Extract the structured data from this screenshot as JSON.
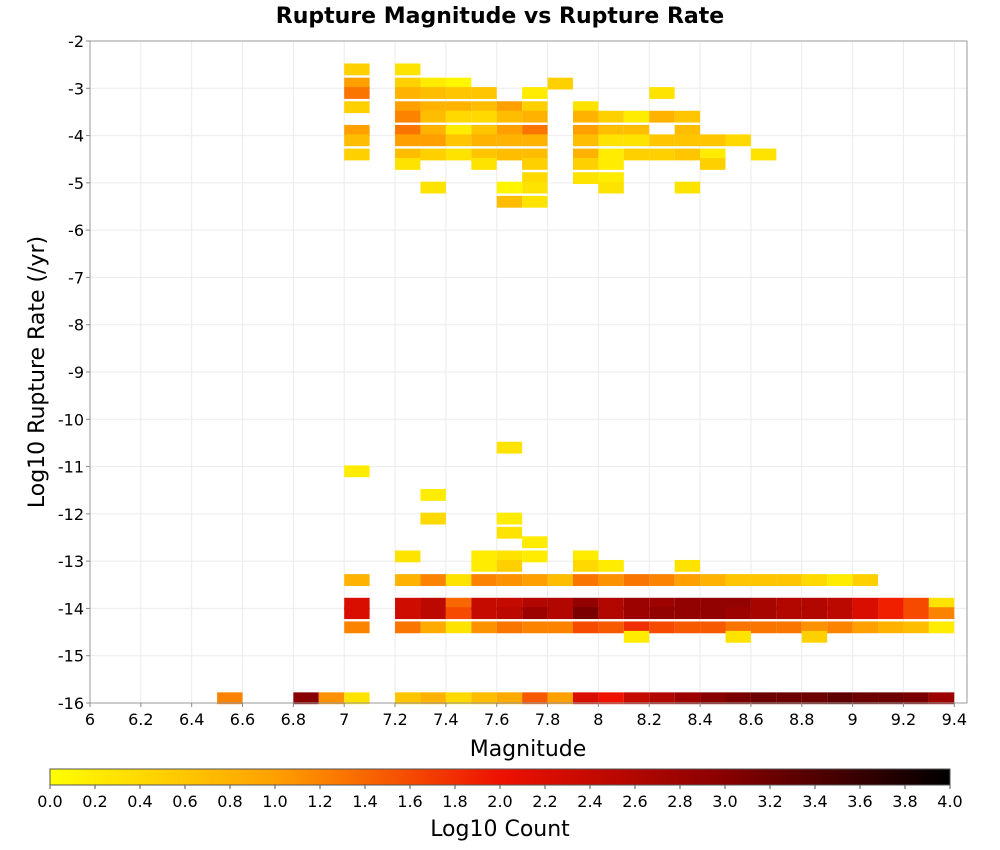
{
  "chart_data": {
    "type": "heatmap",
    "title": "Rupture Magnitude vs Rupture Rate",
    "xlabel": "Magnitude",
    "ylabel": "Log10 Rupture Rate (/yr)",
    "xlim": [
      6.0,
      9.45
    ],
    "ylim": [
      -16,
      -2
    ],
    "xticks": [
      "6",
      "6.2",
      "6.4",
      "6.6",
      "6.8",
      "7",
      "7.2",
      "7.4",
      "7.6",
      "7.8",
      "8",
      "8.2",
      "8.4",
      "8.6",
      "8.8",
      "9",
      "9.2",
      "9.4"
    ],
    "yticks": [
      "-2",
      "-3",
      "-4",
      "-5",
      "-6",
      "-7",
      "-8",
      "-9",
      "-10",
      "-11",
      "-12",
      "-13",
      "-14",
      "-15",
      "-16"
    ],
    "bin_width_x": 0.1,
    "bin_height_y": 0.25,
    "grid": true,
    "colorbar": {
      "label": "Log10 Count",
      "min": 0.0,
      "max": 4.0,
      "ticks": [
        "0.0",
        "0.2",
        "0.4",
        "0.6",
        "0.8",
        "1.0",
        "1.2",
        "1.4",
        "1.6",
        "1.8",
        "2.0",
        "2.2",
        "2.4",
        "2.6",
        "2.8",
        "3.0",
        "3.2",
        "3.4",
        "3.6",
        "3.8",
        "4.0"
      ],
      "colors": [
        "#ffff00",
        "#ffa000",
        "#ee1100",
        "#880000",
        "#000000"
      ]
    },
    "cells": [
      [
        7.05,
        -2.6,
        0.5
      ],
      [
        7.05,
        -2.9,
        1.0
      ],
      [
        7.05,
        -3.1,
        1.3
      ],
      [
        7.05,
        -3.4,
        0.5
      ],
      [
        7.05,
        -3.9,
        1.0
      ],
      [
        7.05,
        -4.1,
        0.7
      ],
      [
        7.05,
        -4.4,
        0.5
      ],
      [
        7.25,
        -2.6,
        0.3
      ],
      [
        7.25,
        -2.9,
        0.5
      ],
      [
        7.25,
        -3.1,
        0.8
      ],
      [
        7.25,
        -3.4,
        1.0
      ],
      [
        7.25,
        -3.6,
        1.2
      ],
      [
        7.25,
        -3.9,
        1.3
      ],
      [
        7.25,
        -4.1,
        1.0
      ],
      [
        7.25,
        -4.4,
        0.7
      ],
      [
        7.25,
        -4.6,
        0.3
      ],
      [
        7.35,
        -2.9,
        0.2
      ],
      [
        7.35,
        -3.1,
        0.7
      ],
      [
        7.35,
        -3.4,
        0.8
      ],
      [
        7.35,
        -3.6,
        0.7
      ],
      [
        7.35,
        -3.9,
        0.8
      ],
      [
        7.35,
        -4.1,
        1.0
      ],
      [
        7.35,
        -4.4,
        0.5
      ],
      [
        7.35,
        -5.1,
        0.3
      ],
      [
        7.45,
        -2.9,
        0.1
      ],
      [
        7.45,
        -3.1,
        0.6
      ],
      [
        7.45,
        -3.4,
        0.8
      ],
      [
        7.45,
        -3.6,
        0.4
      ],
      [
        7.45,
        -3.9,
        0.2
      ],
      [
        7.45,
        -4.1,
        0.6
      ],
      [
        7.45,
        -4.4,
        0.3
      ],
      [
        7.55,
        -3.1,
        0.6
      ],
      [
        7.55,
        -3.4,
        0.7
      ],
      [
        7.55,
        -3.6,
        0.4
      ],
      [
        7.55,
        -3.9,
        0.6
      ],
      [
        7.55,
        -4.1,
        0.8
      ],
      [
        7.55,
        -4.4,
        0.6
      ],
      [
        7.55,
        -4.6,
        0.3
      ],
      [
        7.65,
        -3.4,
        1.0
      ],
      [
        7.65,
        -3.6,
        0.7
      ],
      [
        7.65,
        -3.9,
        1.0
      ],
      [
        7.65,
        -4.1,
        0.8
      ],
      [
        7.65,
        -4.4,
        0.7
      ],
      [
        7.65,
        -5.1,
        0.1
      ],
      [
        7.65,
        -5.4,
        0.7
      ],
      [
        7.75,
        -3.1,
        0.2
      ],
      [
        7.75,
        -3.4,
        0.5
      ],
      [
        7.75,
        -3.6,
        0.8
      ],
      [
        7.75,
        -3.9,
        1.3
      ],
      [
        7.75,
        -4.1,
        0.8
      ],
      [
        7.75,
        -4.4,
        0.7
      ],
      [
        7.75,
        -4.6,
        0.5
      ],
      [
        7.75,
        -4.9,
        0.4
      ],
      [
        7.75,
        -5.1,
        0.3
      ],
      [
        7.75,
        -5.4,
        0.3
      ],
      [
        7.85,
        -2.9,
        0.5
      ],
      [
        7.95,
        -3.4,
        0.3
      ],
      [
        7.95,
        -3.6,
        0.8
      ],
      [
        7.95,
        -3.9,
        1.0
      ],
      [
        7.95,
        -4.1,
        0.7
      ],
      [
        7.95,
        -4.4,
        0.8
      ],
      [
        7.95,
        -4.6,
        0.5
      ],
      [
        7.95,
        -4.9,
        0.3
      ],
      [
        8.05,
        -3.6,
        0.5
      ],
      [
        8.05,
        -3.9,
        0.7
      ],
      [
        8.05,
        -4.1,
        0.3
      ],
      [
        8.05,
        -4.4,
        0.2
      ],
      [
        8.05,
        -4.6,
        0.2
      ],
      [
        8.05,
        -4.9,
        0.2
      ],
      [
        8.05,
        -5.1,
        0.3
      ],
      [
        8.15,
        -3.6,
        0.2
      ],
      [
        8.15,
        -3.9,
        0.7
      ],
      [
        8.15,
        -4.1,
        0.3
      ],
      [
        8.15,
        -4.4,
        0.5
      ],
      [
        8.25,
        -3.1,
        0.3
      ],
      [
        8.25,
        -3.6,
        0.8
      ],
      [
        8.25,
        -4.1,
        0.6
      ],
      [
        8.25,
        -4.4,
        0.5
      ],
      [
        8.35,
        -3.6,
        0.6
      ],
      [
        8.35,
        -3.9,
        0.7
      ],
      [
        8.35,
        -4.1,
        0.6
      ],
      [
        8.35,
        -4.4,
        0.6
      ],
      [
        8.35,
        -5.1,
        0.3
      ],
      [
        8.45,
        -4.1,
        0.6
      ],
      [
        8.45,
        -4.4,
        0.2
      ],
      [
        8.45,
        -4.6,
        0.5
      ],
      [
        8.55,
        -4.1,
        0.4
      ],
      [
        8.65,
        -4.4,
        0.3
      ],
      [
        7.05,
        -11.1,
        0.2
      ],
      [
        7.35,
        -11.6,
        0.2
      ],
      [
        7.35,
        -12.1,
        0.4
      ],
      [
        7.65,
        -10.6,
        0.3
      ],
      [
        7.65,
        -12.1,
        0.2
      ],
      [
        7.65,
        -12.4,
        0.3
      ],
      [
        7.25,
        -12.9,
        0.3
      ],
      [
        7.55,
        -12.9,
        0.2
      ],
      [
        7.55,
        -13.1,
        0.2
      ],
      [
        7.65,
        -12.9,
        0.3
      ],
      [
        7.65,
        -13.1,
        0.5
      ],
      [
        7.75,
        -12.6,
        0.2
      ],
      [
        7.75,
        -12.9,
        0.2
      ],
      [
        7.95,
        -12.9,
        0.2
      ],
      [
        7.95,
        -13.1,
        0.4
      ],
      [
        8.05,
        -13.1,
        0.2
      ],
      [
        8.35,
        -13.1,
        0.3
      ],
      [
        7.05,
        -13.4,
        0.8
      ],
      [
        7.05,
        -13.9,
        2.2
      ],
      [
        7.05,
        -14.1,
        2.2
      ],
      [
        7.05,
        -14.4,
        1.2
      ],
      [
        7.25,
        -13.4,
        0.8
      ],
      [
        7.25,
        -13.9,
        2.3
      ],
      [
        7.25,
        -14.1,
        2.3
      ],
      [
        7.25,
        -14.4,
        1.3
      ],
      [
        7.35,
        -13.4,
        1.2
      ],
      [
        7.35,
        -13.9,
        2.5
      ],
      [
        7.35,
        -14.1,
        2.5
      ],
      [
        7.35,
        -14.4,
        0.9
      ],
      [
        7.45,
        -13.4,
        0.3
      ],
      [
        7.45,
        -13.9,
        1.4
      ],
      [
        7.45,
        -14.1,
        1.6
      ],
      [
        7.45,
        -14.4,
        0.3
      ],
      [
        7.55,
        -13.4,
        1.2
      ],
      [
        7.55,
        -13.9,
        2.4
      ],
      [
        7.55,
        -14.1,
        2.4
      ],
      [
        7.55,
        -14.4,
        1.1
      ],
      [
        7.65,
        -13.4,
        1.1
      ],
      [
        7.65,
        -13.9,
        2.4
      ],
      [
        7.65,
        -14.1,
        2.5
      ],
      [
        7.65,
        -14.4,
        1.3
      ],
      [
        7.75,
        -13.4,
        1.0
      ],
      [
        7.75,
        -13.9,
        2.6
      ],
      [
        7.75,
        -14.1,
        2.8
      ],
      [
        7.75,
        -14.4,
        1.2
      ],
      [
        7.85,
        -13.4,
        0.7
      ],
      [
        7.85,
        -13.9,
        2.6
      ],
      [
        7.85,
        -14.1,
        2.6
      ],
      [
        7.85,
        -14.4,
        1.2
      ],
      [
        7.95,
        -13.4,
        1.3
      ],
      [
        7.95,
        -13.9,
        2.9
      ],
      [
        7.95,
        -14.1,
        3.1
      ],
      [
        7.95,
        -14.4,
        1.6
      ],
      [
        8.05,
        -13.4,
        1.1
      ],
      [
        8.05,
        -13.9,
        2.6
      ],
      [
        8.05,
        -14.1,
        2.6
      ],
      [
        8.05,
        -14.4,
        1.5
      ],
      [
        8.15,
        -13.4,
        1.3
      ],
      [
        8.15,
        -13.9,
        2.8
      ],
      [
        8.15,
        -14.1,
        2.8
      ],
      [
        8.15,
        -14.4,
        1.8
      ],
      [
        8.15,
        -14.6,
        0.2
      ],
      [
        8.25,
        -13.4,
        1.2
      ],
      [
        8.25,
        -13.9,
        2.8
      ],
      [
        8.25,
        -14.1,
        2.9
      ],
      [
        8.25,
        -14.4,
        1.6
      ],
      [
        8.35,
        -13.4,
        1.0
      ],
      [
        8.35,
        -13.9,
        2.9
      ],
      [
        8.35,
        -14.1,
        2.9
      ],
      [
        8.35,
        -14.4,
        1.5
      ],
      [
        8.45,
        -13.4,
        0.8
      ],
      [
        8.45,
        -13.9,
        2.9
      ],
      [
        8.45,
        -14.1,
        2.9
      ],
      [
        8.45,
        -14.4,
        1.5
      ],
      [
        8.55,
        -13.4,
        0.6
      ],
      [
        8.55,
        -13.9,
        2.9
      ],
      [
        8.55,
        -14.1,
        2.8
      ],
      [
        8.55,
        -14.4,
        1.3
      ],
      [
        8.55,
        -14.6,
        0.3
      ],
      [
        8.65,
        -13.4,
        0.6
      ],
      [
        8.65,
        -13.9,
        2.7
      ],
      [
        8.65,
        -14.1,
        2.7
      ],
      [
        8.65,
        -14.4,
        1.3
      ],
      [
        8.75,
        -13.4,
        0.6
      ],
      [
        8.75,
        -13.9,
        2.6
      ],
      [
        8.75,
        -14.1,
        2.6
      ],
      [
        8.75,
        -14.4,
        1.3
      ],
      [
        8.85,
        -13.4,
        0.4
      ],
      [
        8.85,
        -13.9,
        2.6
      ],
      [
        8.85,
        -14.1,
        2.6
      ],
      [
        8.85,
        -14.4,
        1.1
      ],
      [
        8.85,
        -14.6,
        0.5
      ],
      [
        8.95,
        -13.4,
        0.2
      ],
      [
        8.95,
        -13.9,
        2.5
      ],
      [
        8.95,
        -14.1,
        2.5
      ],
      [
        8.95,
        -14.4,
        1.2
      ],
      [
        9.05,
        -13.4,
        0.5
      ],
      [
        9.05,
        -13.9,
        2.2
      ],
      [
        9.05,
        -14.1,
        2.2
      ],
      [
        9.05,
        -14.4,
        1.0
      ],
      [
        9.15,
        -13.9,
        1.9
      ],
      [
        9.15,
        -14.1,
        1.9
      ],
      [
        9.15,
        -14.4,
        0.8
      ],
      [
        9.25,
        -13.9,
        1.6
      ],
      [
        9.25,
        -14.1,
        1.6
      ],
      [
        9.25,
        -14.4,
        0.7
      ],
      [
        9.35,
        -13.9,
        0.3
      ],
      [
        9.35,
        -14.1,
        1.2
      ],
      [
        9.35,
        -14.4,
        0.2
      ],
      [
        6.55,
        -15.9,
        1.2
      ],
      [
        6.85,
        -15.9,
        3.0
      ],
      [
        6.95,
        -15.9,
        1.1
      ],
      [
        7.05,
        -15.9,
        0.3
      ],
      [
        7.25,
        -15.9,
        0.6
      ],
      [
        7.35,
        -15.9,
        0.8
      ],
      [
        7.45,
        -15.9,
        0.4
      ],
      [
        7.55,
        -15.9,
        0.7
      ],
      [
        7.65,
        -15.9,
        0.9
      ],
      [
        7.75,
        -15.9,
        1.5
      ],
      [
        7.85,
        -15.9,
        1.0
      ],
      [
        7.95,
        -15.9,
        2.2
      ],
      [
        8.05,
        -15.9,
        2.0
      ],
      [
        8.15,
        -15.9,
        2.4
      ],
      [
        8.25,
        -15.9,
        2.6
      ],
      [
        8.35,
        -15.9,
        2.8
      ],
      [
        8.45,
        -15.9,
        3.0
      ],
      [
        8.55,
        -15.9,
        3.1
      ],
      [
        8.65,
        -15.9,
        3.2
      ],
      [
        8.75,
        -15.9,
        3.2
      ],
      [
        8.85,
        -15.9,
        3.2
      ],
      [
        8.95,
        -15.9,
        3.3
      ],
      [
        9.05,
        -15.9,
        3.2
      ],
      [
        9.15,
        -15.9,
        3.2
      ],
      [
        9.25,
        -15.9,
        3.1
      ],
      [
        9.35,
        -15.9,
        2.8
      ]
    ]
  }
}
